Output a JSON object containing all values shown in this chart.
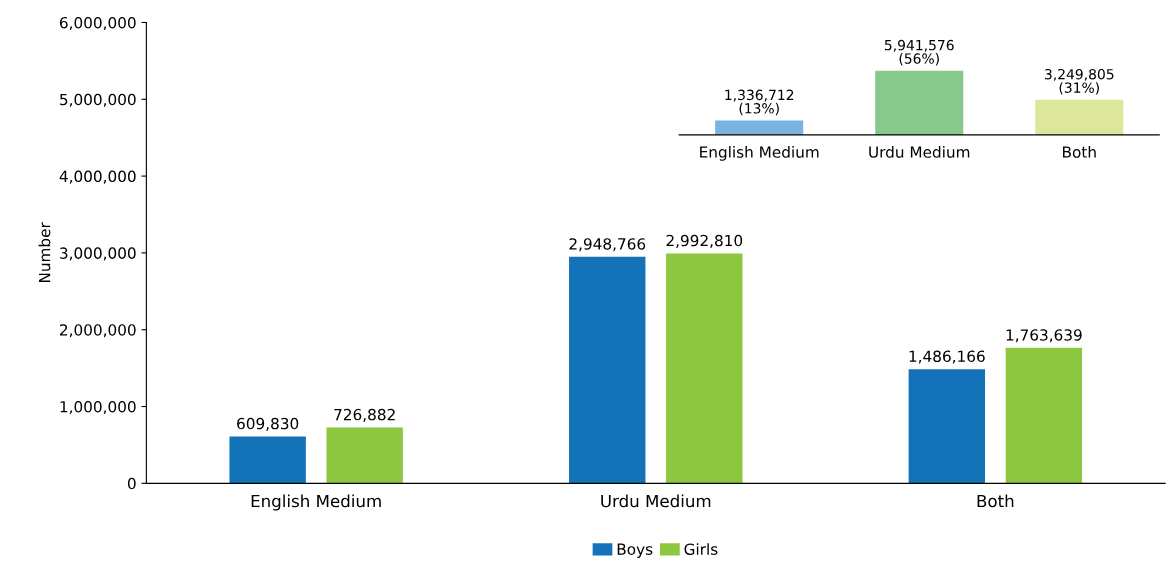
{
  "chart_data": [
    {
      "type": "bar",
      "ylabel": "Number",
      "categories": [
        "English Medium",
        "Urdu Medium",
        "Both"
      ],
      "series": [
        {
          "name": "Boys",
          "color": "#1372b8",
          "values": [
            609830,
            2948766,
            1486166
          ],
          "value_labels": [
            "609,830",
            "2,948,766",
            "1,486,166"
          ]
        },
        {
          "name": "Girls",
          "color": "#8dc63f",
          "values": [
            726882,
            2992810,
            1763639
          ],
          "value_labels": [
            "726,882",
            "2,992,810",
            "1,763,639"
          ]
        }
      ],
      "ylim": [
        0,
        6000000
      ],
      "yticks": [
        0,
        {
          "value": 1000000,
          "label": "1,000,000"
        },
        {
          "value": 2000000,
          "label": "2,000,000"
        },
        {
          "value": 3000000,
          "label": "3,000,000"
        },
        {
          "value": 4000000,
          "label": "4,000,000"
        },
        {
          "value": 5000000,
          "label": "5,000,000"
        },
        {
          "value": 6000000,
          "label": "6,000,000"
        }
      ],
      "grid": false,
      "legend": "bottom"
    },
    {
      "type": "bar",
      "categories": [
        "English Medium",
        "Urdu Medium",
        "Both"
      ],
      "values": [
        1336712,
        5941576,
        3249805
      ],
      "colors": [
        "#7ab3e0",
        "#86c98a",
        "#dce79c"
      ],
      "value_labels": [
        "1,336,712\n(13%)",
        "5,941,576\n(56%)",
        "3,249,805\n(31%)"
      ],
      "tick_labels": "x",
      "grid": false
    }
  ]
}
